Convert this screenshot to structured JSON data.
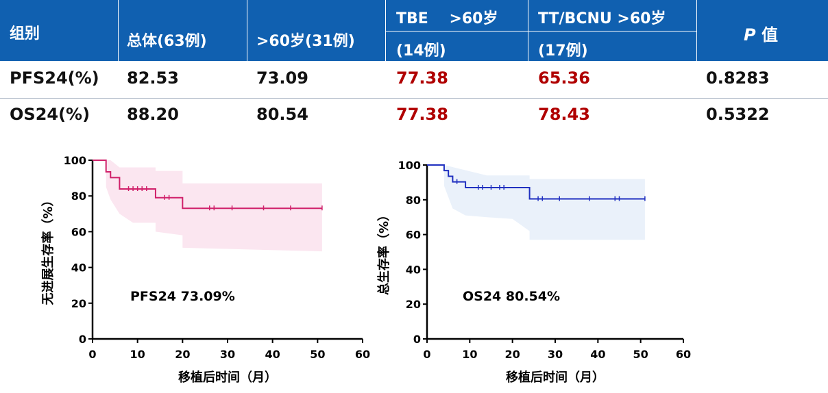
{
  "table": {
    "header": {
      "group": "组别",
      "total": "总体(63例)",
      "over60": ">60岁(31例)",
      "tbe_line1": "TBE    >60岁",
      "tbe_line2": "(14例)",
      "tt_line1": "TT/BCNU >60岁",
      "tt_line2": "(17例)",
      "p_italic": "P",
      "p_rest": "值"
    },
    "rows": [
      {
        "label": "PFS24(%)",
        "total": "82.53",
        "over60": "73.09",
        "tbe": "77.38",
        "tt": "65.36",
        "p": "0.8283"
      },
      {
        "label": "OS24(%)",
        "total": "88.20",
        "over60": "80.54",
        "tbe": "77.38",
        "tt": "78.43",
        "p": "0.5322"
      }
    ],
    "colors": {
      "header_bg": "#1060b0",
      "highlight": "#b00000"
    }
  },
  "chart_data": [
    {
      "type": "line",
      "subtype": "kaplan-meier",
      "xlabel": "移植后时间（月）",
      "ylabel": "无进展生存率（%）",
      "annotation": "PFS24  73.09%",
      "xlim": [
        0,
        60
      ],
      "ylim": [
        0,
        100
      ],
      "xticks": [
        0,
        10,
        20,
        30,
        40,
        50,
        60
      ],
      "yticks": [
        0,
        20,
        40,
        60,
        80,
        100
      ],
      "color": "#d0206a",
      "band_color": "#fbe6f0",
      "series": [
        {
          "steps": [
            [
              0,
              100
            ],
            [
              3,
              100
            ],
            [
              3,
              93.5
            ],
            [
              4,
              93.5
            ],
            [
              4,
              90.3
            ],
            [
              6,
              90.3
            ],
            [
              6,
              83.9
            ],
            [
              14,
              83.9
            ],
            [
              14,
              79.0
            ],
            [
              20,
              79.0
            ],
            [
              20,
              73.1
            ],
            [
              51,
              73.1
            ]
          ],
          "censors": [
            [
              8,
              83.9
            ],
            [
              9,
              83.9
            ],
            [
              10,
              83.9
            ],
            [
              11,
              83.9
            ],
            [
              12,
              83.9
            ],
            [
              16,
              79.0
            ],
            [
              17,
              79.0
            ],
            [
              26,
              73.1
            ],
            [
              27,
              73.1
            ],
            [
              31,
              73.1
            ],
            [
              38,
              73.1
            ],
            [
              44,
              73.1
            ],
            [
              51,
              73.1
            ]
          ],
          "ci_upper": [
            [
              3,
              100
            ],
            [
              4,
              100
            ],
            [
              6,
              96
            ],
            [
              14,
              96
            ],
            [
              14,
              94
            ],
            [
              20,
              94
            ],
            [
              20,
              87
            ],
            [
              51,
              87
            ]
          ],
          "ci_lower": [
            [
              3,
              85
            ],
            [
              4,
              78
            ],
            [
              6,
              70
            ],
            [
              9,
              65
            ],
            [
              14,
              65
            ],
            [
              14,
              60
            ],
            [
              20,
              58
            ],
            [
              20,
              51
            ],
            [
              51,
              49
            ]
          ]
        }
      ]
    },
    {
      "type": "line",
      "subtype": "kaplan-meier",
      "xlabel": "移植后时间（月）",
      "ylabel": "总生存率（%）",
      "annotation": "OS24  80.54%",
      "xlim": [
        0,
        60
      ],
      "ylim": [
        0,
        100
      ],
      "xticks": [
        0,
        10,
        20,
        30,
        40,
        50,
        60
      ],
      "yticks": [
        0,
        20,
        40,
        60,
        80,
        100
      ],
      "color": "#2030c0",
      "band_color": "#eaf1fa",
      "series": [
        {
          "steps": [
            [
              0,
              100
            ],
            [
              4,
              100
            ],
            [
              4,
              96.8
            ],
            [
              5,
              96.8
            ],
            [
              5,
              93.5
            ],
            [
              6,
              93.5
            ],
            [
              6,
              90.3
            ],
            [
              9,
              90.3
            ],
            [
              9,
              87.0
            ],
            [
              24,
              87.0
            ],
            [
              24,
              80.5
            ],
            [
              51,
              80.5
            ]
          ],
          "censors": [
            [
              7,
              90.3
            ],
            [
              12,
              87.0
            ],
            [
              13,
              87.0
            ],
            [
              15,
              87.0
            ],
            [
              17,
              87.0
            ],
            [
              18,
              87.0
            ],
            [
              26,
              80.5
            ],
            [
              27,
              80.5
            ],
            [
              31,
              80.5
            ],
            [
              38,
              80.5
            ],
            [
              44,
              80.5
            ],
            [
              45,
              80.5
            ],
            [
              51,
              80.5
            ]
          ],
          "ci_upper": [
            [
              4,
              100
            ],
            [
              9,
              97
            ],
            [
              14,
              94
            ],
            [
              24,
              94
            ],
            [
              24,
              92
            ],
            [
              51,
              92
            ]
          ],
          "ci_lower": [
            [
              4,
              88
            ],
            [
              6,
              75
            ],
            [
              9,
              71
            ],
            [
              14,
              70
            ],
            [
              20,
              69
            ],
            [
              24,
              62
            ],
            [
              24,
              57
            ],
            [
              51,
              57
            ]
          ]
        }
      ]
    }
  ]
}
